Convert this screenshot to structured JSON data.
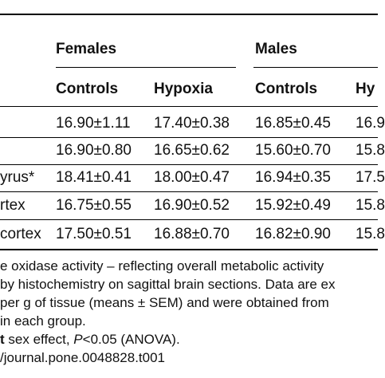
{
  "table": {
    "group_headers": {
      "females": "Females",
      "males": "Males"
    },
    "sub_headers": {
      "f_controls": "Controls",
      "f_hypoxia": "Hypoxia",
      "m_controls": "Controls",
      "m_hypoxia_partial": "Hy"
    },
    "rows": [
      {
        "label": "",
        "f_controls": "16.90±1.11",
        "f_hypoxia": "17.40±0.38",
        "m_controls": "16.85±0.45",
        "m_hypoxia": "16.9"
      },
      {
        "label": "",
        "f_controls": "16.90±0.80",
        "f_hypoxia": "16.65±0.62",
        "m_controls": "15.60±0.70",
        "m_hypoxia": "15.8"
      },
      {
        "label": "yrus*",
        "f_controls": "18.41±0.41",
        "f_hypoxia": "18.00±0.47",
        "m_controls": "16.94±0.35",
        "m_hypoxia": "17.5"
      },
      {
        "label": "rtex",
        "f_controls": "16.75±0.55",
        "f_hypoxia": "16.90±0.52",
        "m_controls": "15.92±0.49",
        "m_hypoxia": "15.8"
      },
      {
        "label": "cortex",
        "f_controls": "17.50±0.51",
        "f_hypoxia": "16.88±0.70",
        "m_controls": "16.82±0.90",
        "m_hypoxia": "15.8"
      }
    ]
  },
  "footnotes": {
    "line1": "e oxidase activity – reflecting overall metabolic activity",
    "line2": " by histochemistry on sagittal brain sections. Data are ex",
    "line3": "per g of tissue (means ± SEM) and were obtained from",
    "line4": " in each group.",
    "line5_bold": "t",
    "line5_rest": " sex effect, ",
    "line5_p": "P",
    "line5_tail": "<0.05 (ANOVA).",
    "line6": "/journal.pone.0048828.t001"
  }
}
